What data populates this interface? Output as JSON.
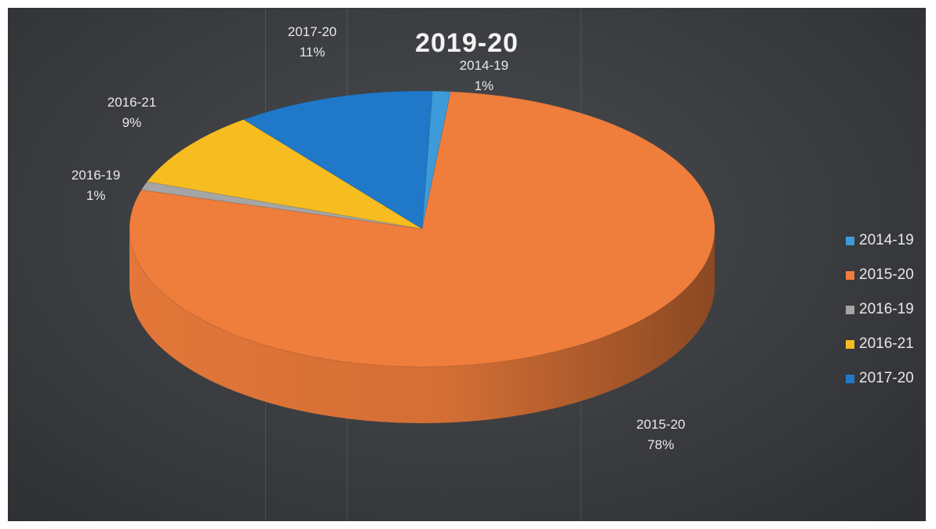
{
  "chart_data": {
    "type": "pie",
    "title": "2019-20",
    "three_d": true,
    "legend_position": "right",
    "slices": [
      {
        "name": "2014-19",
        "value": 1,
        "label": "1%",
        "color": "#3d9bd9"
      },
      {
        "name": "2015-20",
        "value": 78,
        "label": "78%",
        "color": "#ef7d3c"
      },
      {
        "name": "2016-19",
        "value": 1,
        "label": "1%",
        "color": "#a5a5a5"
      },
      {
        "name": "2016-21",
        "value": 9,
        "label": "9%",
        "color": "#f7bd20"
      },
      {
        "name": "2017-20",
        "value": 11,
        "label": "11%",
        "color": "#1f78c8"
      }
    ]
  }
}
